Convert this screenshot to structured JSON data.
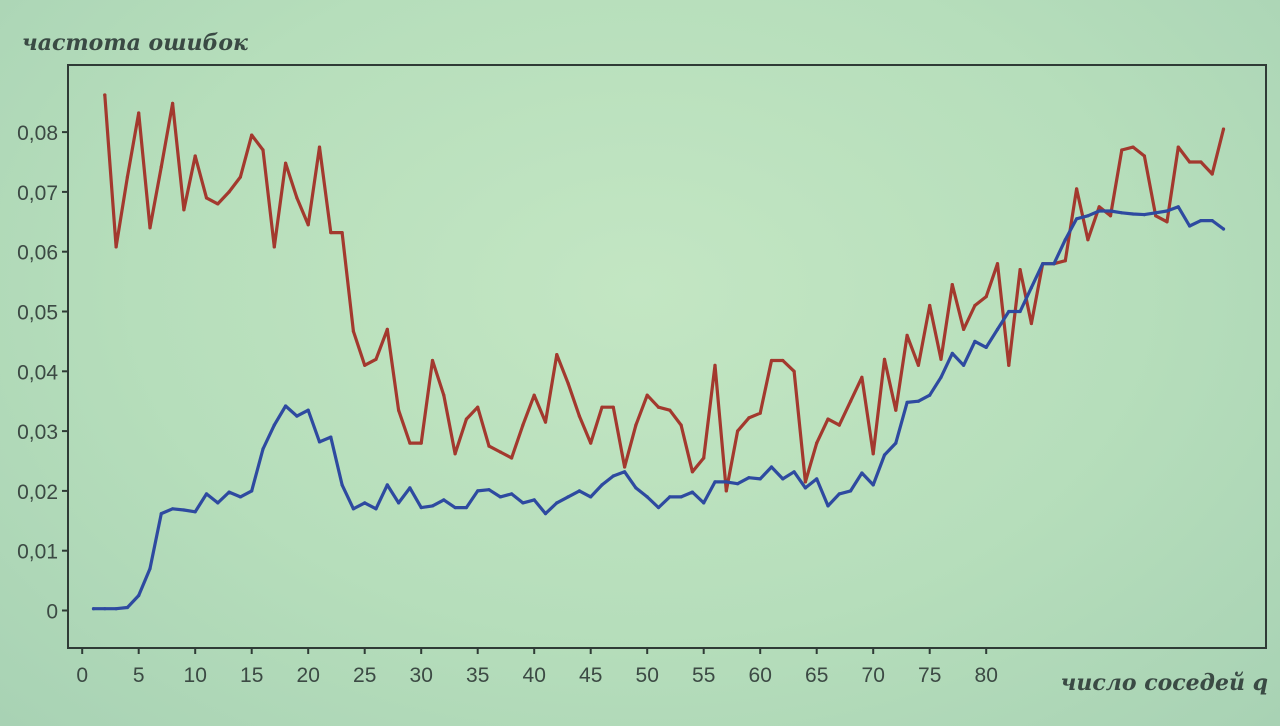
{
  "chart_data": {
    "type": "line",
    "title": "",
    "ylabel": "частота ошибок",
    "xlabel": "число соседей q",
    "xlim": [
      0,
      100
    ],
    "ylim": [
      -0.006,
      0.092
    ],
    "x_ticks": [
      {
        "value": 0,
        "label": "0"
      },
      {
        "value": 5,
        "label": "5"
      },
      {
        "value": 10,
        "label": "10"
      },
      {
        "value": 15,
        "label": "15"
      },
      {
        "value": 20,
        "label": "20"
      },
      {
        "value": 25,
        "label": "25"
      },
      {
        "value": 30,
        "label": "30"
      },
      {
        "value": 35,
        "label": "35"
      },
      {
        "value": 40,
        "label": "40"
      },
      {
        "value": 45,
        "label": "45"
      },
      {
        "value": 50,
        "label": "50"
      },
      {
        "value": 55,
        "label": "55"
      },
      {
        "value": 60,
        "label": "60"
      },
      {
        "value": 65,
        "label": "65"
      },
      {
        "value": 70,
        "label": "70"
      },
      {
        "value": 75,
        "label": "75"
      },
      {
        "value": 80,
        "label": "80"
      }
    ],
    "y_ticks": [
      {
        "value": 0,
        "label": "0"
      },
      {
        "value": 0.01,
        "label": "0,01"
      },
      {
        "value": 0.02,
        "label": "0,02"
      },
      {
        "value": 0.03,
        "label": "0,03"
      },
      {
        "value": 0.04,
        "label": "0,04"
      },
      {
        "value": 0.05,
        "label": "0,05"
      },
      {
        "value": 0.06,
        "label": "0,06"
      },
      {
        "value": 0.07,
        "label": "0,07"
      },
      {
        "value": 0.08,
        "label": "0,08"
      }
    ],
    "grid": false,
    "series": [
      {
        "color": "#a3392e",
        "points": [
          [
            2,
            0.0862
          ],
          [
            3,
            0.0608
          ],
          [
            4,
            0.0725
          ],
          [
            5,
            0.0832
          ],
          [
            6,
            0.064
          ],
          [
            7,
            0.0742
          ],
          [
            8,
            0.0848
          ],
          [
            9,
            0.067
          ],
          [
            10,
            0.076
          ],
          [
            11,
            0.069
          ],
          [
            12,
            0.068
          ],
          [
            13,
            0.07
          ],
          [
            14,
            0.0725
          ],
          [
            15,
            0.0795
          ],
          [
            16,
            0.077
          ],
          [
            17,
            0.0608
          ],
          [
            18,
            0.0748
          ],
          [
            19,
            0.069
          ],
          [
            20,
            0.0645
          ],
          [
            21,
            0.0775
          ],
          [
            22,
            0.0632
          ],
          [
            23,
            0.0632
          ],
          [
            24,
            0.0467
          ],
          [
            25,
            0.041
          ],
          [
            26,
            0.042
          ],
          [
            27,
            0.047
          ],
          [
            28,
            0.0335
          ],
          [
            29,
            0.028
          ],
          [
            30,
            0.028
          ],
          [
            31,
            0.0418
          ],
          [
            32,
            0.036
          ],
          [
            33,
            0.0262
          ],
          [
            34,
            0.032
          ],
          [
            35,
            0.034
          ],
          [
            36,
            0.0275
          ],
          [
            37,
            0.0265
          ],
          [
            38,
            0.0255
          ],
          [
            39,
            0.031
          ],
          [
            40,
            0.036
          ],
          [
            41,
            0.0315
          ],
          [
            42,
            0.0428
          ],
          [
            43,
            0.038
          ],
          [
            44,
            0.0325
          ],
          [
            45,
            0.028
          ],
          [
            46,
            0.034
          ],
          [
            47,
            0.034
          ],
          [
            48,
            0.024
          ],
          [
            49,
            0.031
          ],
          [
            50,
            0.036
          ],
          [
            51,
            0.034
          ],
          [
            52,
            0.0335
          ],
          [
            53,
            0.031
          ],
          [
            54,
            0.0232
          ],
          [
            55,
            0.0255
          ],
          [
            56,
            0.041
          ],
          [
            57,
            0.02
          ],
          [
            58,
            0.03
          ],
          [
            59,
            0.0322
          ],
          [
            60,
            0.033
          ],
          [
            61,
            0.0418
          ],
          [
            62,
            0.0418
          ],
          [
            63,
            0.04
          ],
          [
            64,
            0.0215
          ],
          [
            65,
            0.028
          ],
          [
            66,
            0.032
          ],
          [
            67,
            0.031
          ],
          [
            68,
            0.035
          ],
          [
            69,
            0.039
          ],
          [
            70,
            0.0262
          ],
          [
            71,
            0.042
          ],
          [
            72,
            0.0335
          ],
          [
            73,
            0.046
          ],
          [
            74,
            0.041
          ],
          [
            75,
            0.051
          ],
          [
            76,
            0.042
          ],
          [
            77,
            0.0545
          ],
          [
            78,
            0.047
          ],
          [
            79,
            0.051
          ],
          [
            80,
            0.0525
          ],
          [
            81,
            0.058
          ],
          [
            82,
            0.041
          ],
          [
            83,
            0.057
          ],
          [
            84,
            0.048
          ],
          [
            85,
            0.058
          ],
          [
            86,
            0.058
          ],
          [
            87,
            0.0585
          ],
          [
            88,
            0.0705
          ],
          [
            89,
            0.062
          ],
          [
            90,
            0.0675
          ],
          [
            91,
            0.066
          ],
          [
            92,
            0.077
          ],
          [
            93,
            0.0775
          ],
          [
            94,
            0.076
          ],
          [
            95,
            0.066
          ],
          [
            96,
            0.065
          ],
          [
            97,
            0.0775
          ],
          [
            98,
            0.075
          ],
          [
            99,
            0.075
          ],
          [
            100,
            0.073
          ],
          [
            101,
            0.0805
          ]
        ]
      },
      {
        "color": "#2e4aa0",
        "points": [
          [
            1,
            0.0003
          ],
          [
            2,
            0.0003
          ],
          [
            3,
            0.0003
          ],
          [
            4,
            0.0005
          ],
          [
            5,
            0.0025
          ],
          [
            6,
            0.007
          ],
          [
            7,
            0.0162
          ],
          [
            8,
            0.017
          ],
          [
            9,
            0.0168
          ],
          [
            10,
            0.0165
          ],
          [
            11,
            0.0195
          ],
          [
            12,
            0.018
          ],
          [
            13,
            0.0198
          ],
          [
            14,
            0.019
          ],
          [
            15,
            0.02
          ],
          [
            16,
            0.027
          ],
          [
            17,
            0.031
          ],
          [
            18,
            0.0342
          ],
          [
            19,
            0.0325
          ],
          [
            20,
            0.0335
          ],
          [
            21,
            0.0282
          ],
          [
            22,
            0.029
          ],
          [
            23,
            0.021
          ],
          [
            24,
            0.017
          ],
          [
            25,
            0.018
          ],
          [
            26,
            0.017
          ],
          [
            27,
            0.021
          ],
          [
            28,
            0.018
          ],
          [
            29,
            0.0205
          ],
          [
            30,
            0.0172
          ],
          [
            31,
            0.0175
          ],
          [
            32,
            0.0185
          ],
          [
            33,
            0.0172
          ],
          [
            34,
            0.0172
          ],
          [
            35,
            0.02
          ],
          [
            36,
            0.0202
          ],
          [
            37,
            0.019
          ],
          [
            38,
            0.0195
          ],
          [
            39,
            0.018
          ],
          [
            40,
            0.0185
          ],
          [
            41,
            0.0162
          ],
          [
            42,
            0.018
          ],
          [
            43,
            0.019
          ],
          [
            44,
            0.02
          ],
          [
            45,
            0.019
          ],
          [
            46,
            0.021
          ],
          [
            47,
            0.0225
          ],
          [
            48,
            0.0232
          ],
          [
            49,
            0.0205
          ],
          [
            50,
            0.019
          ],
          [
            51,
            0.0172
          ],
          [
            52,
            0.019
          ],
          [
            53,
            0.019
          ],
          [
            54,
            0.0198
          ],
          [
            55,
            0.018
          ],
          [
            56,
            0.0215
          ],
          [
            57,
            0.0215
          ],
          [
            58,
            0.0212
          ],
          [
            59,
            0.0222
          ],
          [
            60,
            0.022
          ],
          [
            61,
            0.024
          ],
          [
            62,
            0.022
          ],
          [
            63,
            0.0232
          ],
          [
            64,
            0.0205
          ],
          [
            65,
            0.022
          ],
          [
            66,
            0.0175
          ],
          [
            67,
            0.0195
          ],
          [
            68,
            0.02
          ],
          [
            69,
            0.023
          ],
          [
            70,
            0.021
          ],
          [
            71,
            0.026
          ],
          [
            72,
            0.028
          ],
          [
            73,
            0.0348
          ],
          [
            74,
            0.035
          ],
          [
            75,
            0.036
          ],
          [
            76,
            0.039
          ],
          [
            77,
            0.043
          ],
          [
            78,
            0.041
          ],
          [
            79,
            0.045
          ],
          [
            80,
            0.044
          ],
          [
            81,
            0.047
          ],
          [
            82,
            0.05
          ],
          [
            83,
            0.05
          ],
          [
            84,
            0.054
          ],
          [
            85,
            0.058
          ],
          [
            86,
            0.058
          ],
          [
            87,
            0.062
          ],
          [
            88,
            0.0655
          ],
          [
            89,
            0.066
          ],
          [
            90,
            0.0668
          ],
          [
            91,
            0.0668
          ],
          [
            92,
            0.0665
          ],
          [
            93,
            0.0663
          ],
          [
            94,
            0.0662
          ],
          [
            95,
            0.0665
          ],
          [
            96,
            0.0668
          ],
          [
            97,
            0.0675
          ],
          [
            98,
            0.0643
          ],
          [
            99,
            0.0652
          ],
          [
            100,
            0.0652
          ],
          [
            101,
            0.0638
          ]
        ]
      }
    ]
  }
}
